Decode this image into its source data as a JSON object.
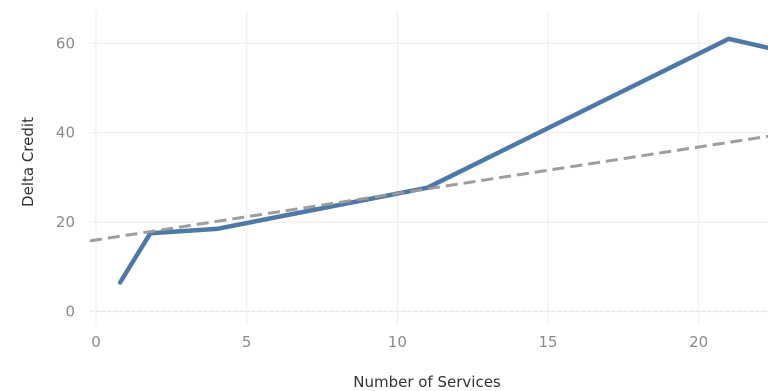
{
  "chart_data": {
    "type": "line",
    "xlabel": "Number of Services",
    "ylabel": "Delta Credit",
    "xlim": [
      -0.2,
      22.3
    ],
    "ylim": [
      -3,
      67
    ],
    "x_ticks": [
      "0",
      "5",
      "10",
      "15",
      "20"
    ],
    "x_tick_values": [
      0,
      5,
      10,
      15,
      20
    ],
    "y_ticks": [
      "0",
      "20",
      "40",
      "60"
    ],
    "y_tick_values": [
      0,
      20,
      40,
      60
    ],
    "grid": true,
    "series": [
      {
        "style": "solid",
        "color": "#4e79a7",
        "x": [
          0.8,
          1.8,
          4,
          11,
          21,
          22.3
        ],
        "y": [
          6.5,
          17.5,
          18.5,
          27.7,
          61,
          59
        ]
      },
      {
        "style": "dashed",
        "color": "#999999",
        "x": [
          -0.2,
          22.3
        ],
        "y": [
          15.8,
          39.2
        ]
      }
    ]
  }
}
